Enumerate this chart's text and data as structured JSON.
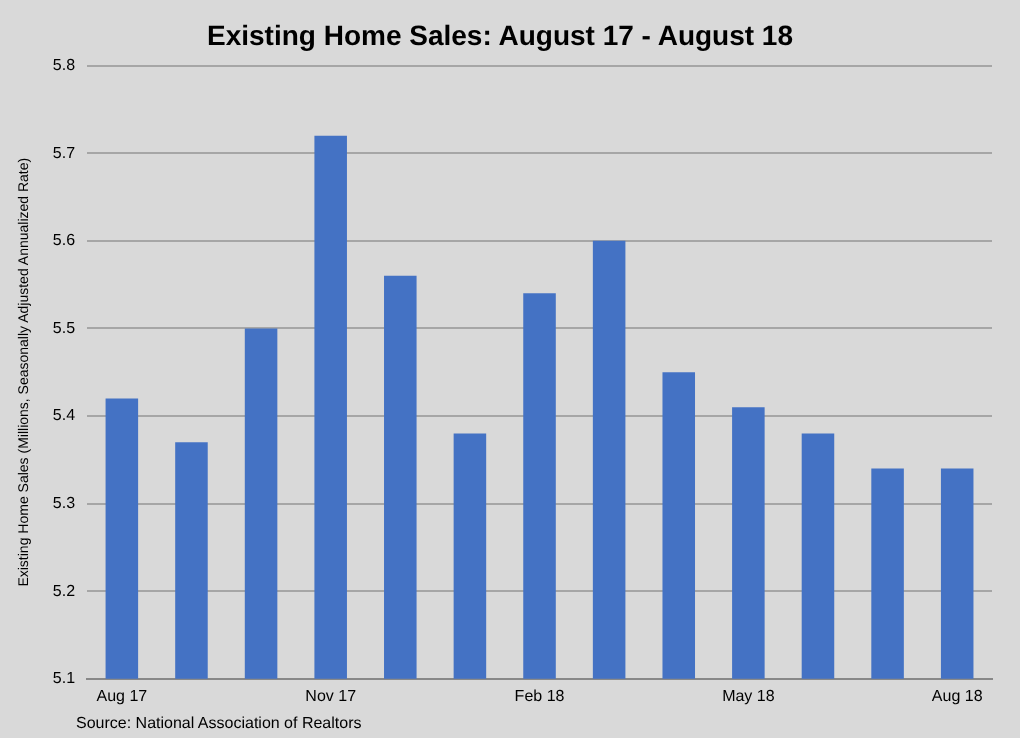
{
  "chart_data": {
    "type": "bar",
    "title": "Existing Home Sales: August 17 - August 18",
    "ylabel": "Existing Home Sales (Millions, Seasonally Adjusted Annualized Rate)",
    "categories": [
      "Aug 17",
      null,
      null,
      "Nov 17",
      null,
      null,
      "Feb 18",
      null,
      null,
      "May 18",
      null,
      null,
      "Aug 18"
    ],
    "values": [
      5.42,
      5.37,
      5.5,
      5.72,
      5.56,
      5.38,
      5.54,
      5.6,
      5.45,
      5.41,
      5.38,
      5.34,
      5.34
    ],
    "color": "#4472c4",
    "ylim": [
      5.1,
      5.8
    ],
    "yticks": [
      5.1,
      5.2,
      5.3,
      5.4,
      5.5,
      5.6,
      5.7,
      5.8
    ],
    "grid": "y",
    "annotations": [
      "Source: National Association of Realtors"
    ]
  }
}
